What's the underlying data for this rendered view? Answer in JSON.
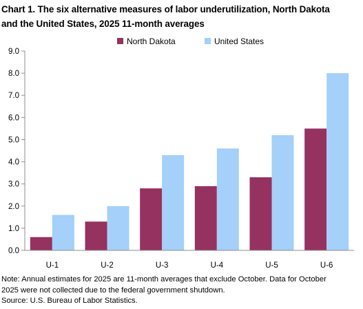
{
  "title": {
    "line1": "Chart 1. The six alternative measures of labor underutilization, North Dakota",
    "line2": "and the United States, 2025 11-month averages"
  },
  "chart_data": {
    "type": "bar",
    "categories": [
      "U-1",
      "U-2",
      "U-3",
      "U-4",
      "U-5",
      "U-6"
    ],
    "series": [
      {
        "name": "North Dakota",
        "color": "#963260",
        "values": [
          0.6,
          1.3,
          2.8,
          2.9,
          3.3,
          5.5
        ]
      },
      {
        "name": "United States",
        "color": "#a4d0f9",
        "values": [
          1.6,
          2.0,
          4.3,
          4.6,
          5.2,
          8.0
        ]
      }
    ],
    "ylim": [
      0,
      9
    ],
    "yticks": [
      "0.0",
      "1.0",
      "2.0",
      "3.0",
      "4.0",
      "5.0",
      "6.0",
      "7.0",
      "8.0",
      "9.0"
    ],
    "grid": false,
    "legend_position": "top"
  },
  "footer": {
    "note_line1": "Note: Annual estimates for 2025 are 11-month averages that exclude October. Data for October",
    "note_line2": "2025 were not collected due to the federal government shutdown.",
    "source": "Source: U.S. Bureau of Labor Statistics."
  }
}
